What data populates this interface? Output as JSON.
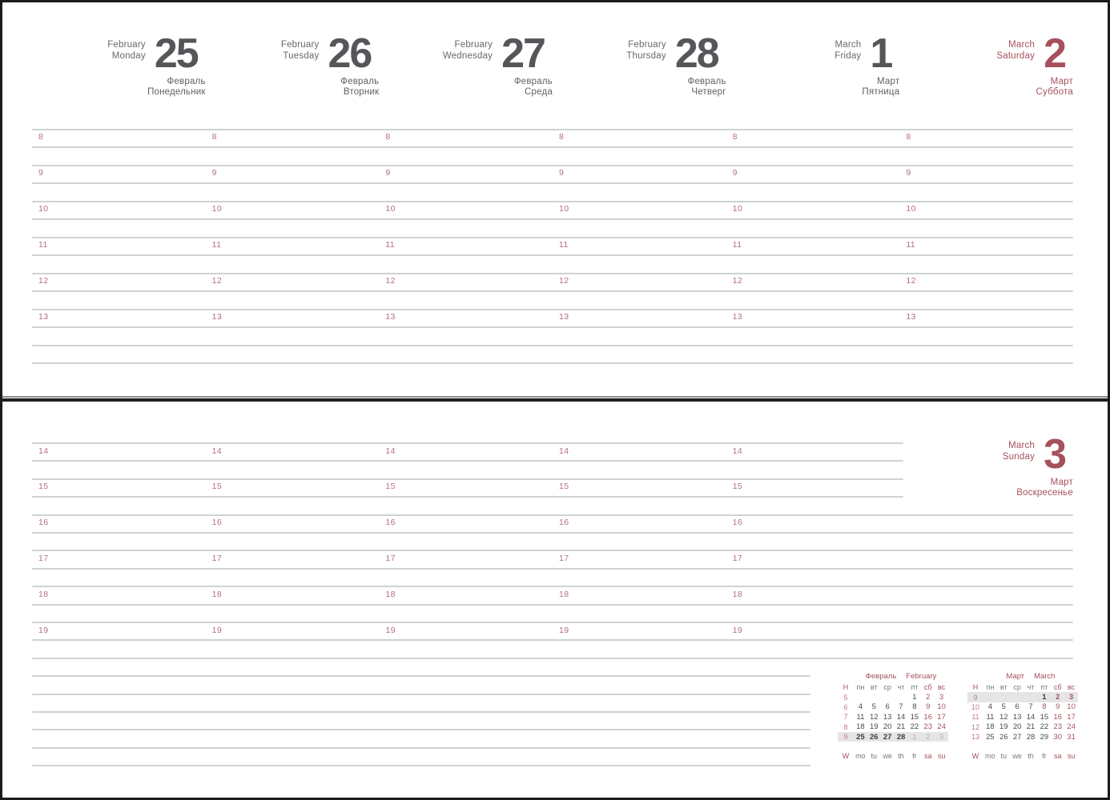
{
  "colors": {
    "red": "#a5515c",
    "red_soft": "#b4707a",
    "dark": "#55565a",
    "gray": "#67686c",
    "line": "#d0d1d3",
    "muted": "#b5b0b1",
    "highlight_bg": "#e5e5e6",
    "frame": "#1b1b1b"
  },
  "top_page": {
    "day_headers": [
      {
        "month_en": "February",
        "day_en": "Monday",
        "num": "25",
        "month_ru": "Февраль",
        "day_ru": "Понедельник",
        "weekend": false
      },
      {
        "month_en": "February",
        "day_en": "Tuesday",
        "num": "26",
        "month_ru": "Февраль",
        "day_ru": "Вторник",
        "weekend": false
      },
      {
        "month_en": "February",
        "day_en": "Wednesday",
        "num": "27",
        "month_ru": "Февраль",
        "day_ru": "Среда",
        "weekend": false
      },
      {
        "month_en": "February",
        "day_en": "Thursday",
        "num": "28",
        "month_ru": "Февраль",
        "day_ru": "Четверг",
        "weekend": false
      },
      {
        "month_en": "March",
        "day_en": "Friday",
        "num": "1",
        "month_ru": "Март",
        "day_ru": "Пятница",
        "weekend": false
      },
      {
        "month_en": "March",
        "day_en": "Saturday",
        "num": "2",
        "month_ru": "Март",
        "day_ru": "Суббота",
        "weekend": true
      }
    ],
    "hours": [
      "8",
      "9",
      "10",
      "11",
      "12",
      "13"
    ]
  },
  "bottom_page": {
    "day_header": {
      "month_en": "March",
      "day_en": "Sunday",
      "num": "3",
      "month_ru": "Март",
      "day_ru": "Воскресенье",
      "weekend": true
    },
    "hours": [
      "14",
      "15",
      "16",
      "17",
      "18",
      "19"
    ]
  },
  "mini_calendars": [
    {
      "title_ru": "Февраль",
      "title_en": "February",
      "week_header": "H",
      "footer_week": "W",
      "day_names": [
        "пн",
        "вт",
        "ср",
        "чт",
        "пт",
        "сб",
        "вс"
      ],
      "footer_days": [
        "mo",
        "tu",
        "we",
        "th",
        "fr",
        "sa",
        "su"
      ],
      "weeks": [
        {
          "num": "5",
          "hl": false,
          "days": [
            [
              "",
              ""
            ],
            [
              "",
              ""
            ],
            [
              "",
              ""
            ],
            [
              "",
              ""
            ],
            [
              "1",
              "n"
            ],
            [
              "2",
              "we"
            ],
            [
              "3",
              "we"
            ]
          ]
        },
        {
          "num": "6",
          "hl": false,
          "days": [
            [
              "4",
              "n"
            ],
            [
              "5",
              "n"
            ],
            [
              "6",
              "n"
            ],
            [
              "7",
              "n"
            ],
            [
              "8",
              "n"
            ],
            [
              "9",
              "we"
            ],
            [
              "10",
              "we"
            ]
          ]
        },
        {
          "num": "7",
          "hl": false,
          "days": [
            [
              "11",
              "n"
            ],
            [
              "12",
              "n"
            ],
            [
              "13",
              "n"
            ],
            [
              "14",
              "n"
            ],
            [
              "15",
              "n"
            ],
            [
              "16",
              "we"
            ],
            [
              "17",
              "we"
            ]
          ]
        },
        {
          "num": "8",
          "hl": false,
          "days": [
            [
              "18",
              "n"
            ],
            [
              "19",
              "n"
            ],
            [
              "20",
              "n"
            ],
            [
              "21",
              "n"
            ],
            [
              "22",
              "n"
            ],
            [
              "23",
              "we"
            ],
            [
              "24",
              "we"
            ]
          ]
        },
        {
          "num": "9",
          "hl": true,
          "days": [
            [
              "25",
              "cur"
            ],
            [
              "26",
              "cur"
            ],
            [
              "27",
              "cur"
            ],
            [
              "28",
              "cur"
            ],
            [
              "1",
              "mu"
            ],
            [
              "2",
              "mu"
            ],
            [
              "3",
              "mu"
            ]
          ]
        }
      ]
    },
    {
      "title_ru": "Март",
      "title_en": "March",
      "week_header": "H",
      "footer_week": "W",
      "day_names": [
        "пн",
        "вт",
        "ср",
        "чт",
        "пт",
        "сб",
        "вс"
      ],
      "footer_days": [
        "mo",
        "tu",
        "we",
        "th",
        "fr",
        "sa",
        "su"
      ],
      "weeks": [
        {
          "num": "9",
          "hl": true,
          "days": [
            [
              "",
              ""
            ],
            [
              "",
              ""
            ],
            [
              "",
              ""
            ],
            [
              "",
              ""
            ],
            [
              "1",
              "cur"
            ],
            [
              "2",
              "curwe"
            ],
            [
              "3",
              "curwe"
            ]
          ]
        },
        {
          "num": "10",
          "hl": false,
          "days": [
            [
              "4",
              "n"
            ],
            [
              "5",
              "n"
            ],
            [
              "6",
              "n"
            ],
            [
              "7",
              "n"
            ],
            [
              "8",
              "we"
            ],
            [
              "9",
              "we"
            ],
            [
              "10",
              "we"
            ]
          ]
        },
        {
          "num": "11",
          "hl": false,
          "days": [
            [
              "11",
              "n"
            ],
            [
              "12",
              "n"
            ],
            [
              "13",
              "n"
            ],
            [
              "14",
              "n"
            ],
            [
              "15",
              "n"
            ],
            [
              "16",
              "we"
            ],
            [
              "17",
              "we"
            ]
          ]
        },
        {
          "num": "12",
          "hl": false,
          "days": [
            [
              "18",
              "n"
            ],
            [
              "19",
              "n"
            ],
            [
              "20",
              "n"
            ],
            [
              "21",
              "n"
            ],
            [
              "22",
              "n"
            ],
            [
              "23",
              "we"
            ],
            [
              "24",
              "we"
            ]
          ]
        },
        {
          "num": "13",
          "hl": false,
          "days": [
            [
              "25",
              "n"
            ],
            [
              "26",
              "n"
            ],
            [
              "27",
              "n"
            ],
            [
              "28",
              "n"
            ],
            [
              "29",
              "n"
            ],
            [
              "30",
              "we"
            ],
            [
              "31",
              "we"
            ]
          ]
        }
      ]
    }
  ]
}
